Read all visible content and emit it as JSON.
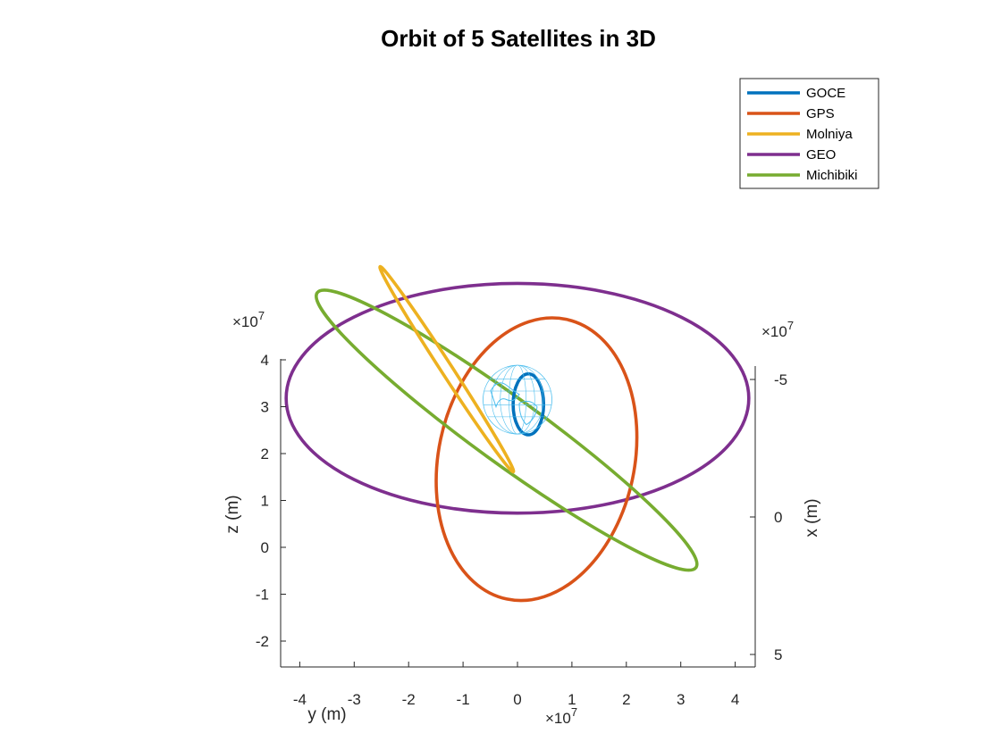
{
  "chart_data": {
    "type": "line",
    "title": "Orbit of 5 Satellites in 3D",
    "view": "3d-projection",
    "axes": {
      "y": {
        "label": "y (m)",
        "exponent_label": "×10",
        "exponent": "7",
        "ticks": [
          -4,
          -3,
          -2,
          -1,
          0,
          1,
          2,
          3,
          4
        ],
        "tick_labels": [
          "-4",
          "-3",
          "-2",
          "-1",
          "0",
          "1",
          "2",
          "3",
          "4"
        ],
        "range": [
          -4.3,
          4.3
        ]
      },
      "z": {
        "label": "z (m)",
        "exponent_label": "×10",
        "exponent": "7",
        "ticks": [
          -2,
          -1,
          0,
          1,
          2,
          3,
          4
        ],
        "tick_labels": [
          "-2",
          "-1",
          "0",
          "1",
          "2",
          "3",
          "4"
        ],
        "range": [
          -2.55,
          4.2
        ]
      },
      "x": {
        "label": "x (m)",
        "exponent_label": "×10",
        "exponent": "7",
        "ticks": [
          -5,
          0,
          5
        ],
        "tick_labels": [
          "-5",
          "0",
          "5"
        ],
        "range": [
          -5.5,
          5.5
        ],
        "reversed": true
      }
    },
    "legend": {
      "position": "top-right",
      "entries": [
        "GOCE",
        "GPS",
        "Molniya",
        "GEO",
        "Michibiki"
      ]
    },
    "series": [
      {
        "name": "GOCE",
        "color": "#0072BD",
        "shape": "near-earth orbit",
        "projected_ellipse": {
          "center": [
            0.2,
            3.05
          ],
          "rx": 0.28,
          "ry": 0.65,
          "rotate_deg": 0
        }
      },
      {
        "name": "GPS",
        "color": "#D95319",
        "shape": "ellipse",
        "projected_ellipse": {
          "center": [
            0.35,
            1.88
          ],
          "rx": 1.8,
          "ry": 3.05,
          "rotate_deg": 12
        }
      },
      {
        "name": "Molniya",
        "color": "#EDB120",
        "shape": "highly eccentric ellipse",
        "projected_ellipse": {
          "center": [
            -1.3,
            3.8
          ],
          "rx": 2.25,
          "ry": 0.12,
          "rotate_deg": 57
        }
      },
      {
        "name": "GEO",
        "color": "#7E2F8E",
        "shape": "circle",
        "projected_ellipse": {
          "center": [
            0.0,
            3.18
          ],
          "rx": 4.25,
          "ry": 2.45,
          "rotate_deg": 0
        }
      },
      {
        "name": "Michibiki",
        "color": "#77AC30",
        "shape": "inclined ellipse",
        "projected_ellipse": {
          "center": [
            -0.2,
            2.5
          ],
          "rx": 4.3,
          "ry": 0.7,
          "rotate_deg": 36
        }
      }
    ],
    "earth": {
      "color": "#4DBEEE",
      "center": [
        0.0,
        3.15
      ],
      "radius": 0.55
    }
  }
}
